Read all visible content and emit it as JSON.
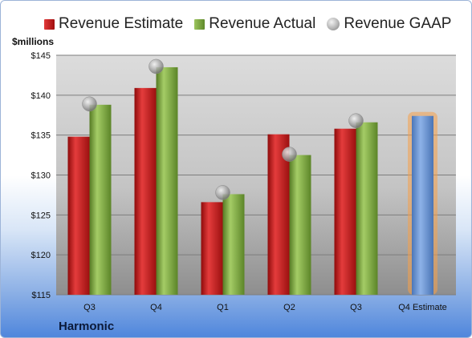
{
  "chart_data": {
    "type": "bar",
    "categories": [
      "Q3",
      "Q4",
      "Q1",
      "Q2",
      "Q3",
      "Q4 Estimate"
    ],
    "series": [
      {
        "name": "Revenue Estimate",
        "values": [
          134.8,
          140.9,
          126.6,
          135.1,
          135.8,
          137.4
        ],
        "color": "#c0191b"
      },
      {
        "name": "Revenue Actual",
        "values": [
          138.8,
          143.5,
          127.6,
          132.5,
          136.6,
          null
        ],
        "color": "#78a33a"
      },
      {
        "name": "Revenue GAAP",
        "values": [
          138.9,
          143.6,
          127.8,
          132.6,
          136.8,
          null
        ],
        "color": "#a8a8a8"
      }
    ],
    "ylabel": "$millions",
    "ylim": [
      115,
      145
    ],
    "yticks": [
      "$115",
      "$120",
      "$125",
      "$130",
      "$135",
      "$140",
      "$145"
    ],
    "ytick_values": [
      115,
      120,
      125,
      130,
      135,
      140,
      145
    ],
    "grid": true,
    "legend_position": "top",
    "highlight_category": "Q4 Estimate",
    "highlight_bar_color": "#6f9ad6",
    "highlight_glow_color": "#f5a14a"
  },
  "company": "Harmonic"
}
